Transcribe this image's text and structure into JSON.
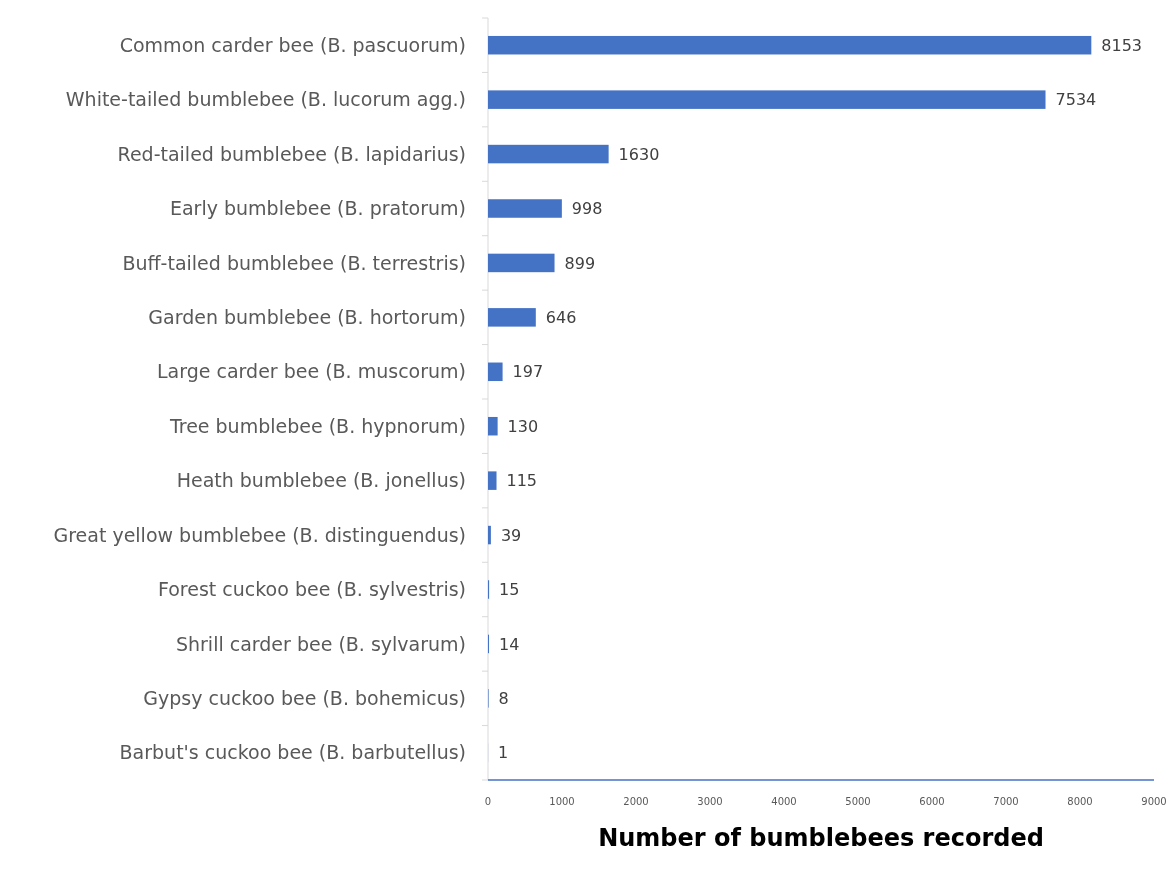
{
  "chart_data": {
    "type": "bar",
    "orientation": "horizontal",
    "xlabel": "Number of bumblebees recorded",
    "categories": [
      "Common carder bee (B. pascuorum)",
      "White-tailed bumblebee (B. lucorum agg.)",
      "Red-tailed bumblebee (B. lapidarius)",
      "Early bumblebee (B. pratorum)",
      "Buff-tailed bumblebee (B. terrestris)",
      "Garden bumblebee (B. hortorum)",
      "Large carder bee (B. muscorum)",
      "Tree bumblebee (B. hypnorum)",
      "Heath bumblebee (B. jonellus)",
      "Great yellow bumblebee (B. distinguendus)",
      "Forest cuckoo bee (B. sylvestris)",
      "Shrill carder bee (B. sylvarum)",
      "Gypsy cuckoo bee (B. bohemicus)",
      "Barbut's cuckoo bee (B. barbutellus)"
    ],
    "values": [
      8153,
      7534,
      1630,
      998,
      899,
      646,
      197,
      130,
      115,
      39,
      15,
      14,
      8,
      1
    ],
    "color": "#4472c4",
    "data_labels": true,
    "xlim": [
      0,
      9000
    ],
    "xticks": [
      0,
      1000,
      2000,
      3000,
      4000,
      5000,
      6000,
      7000,
      8000,
      9000
    ]
  }
}
